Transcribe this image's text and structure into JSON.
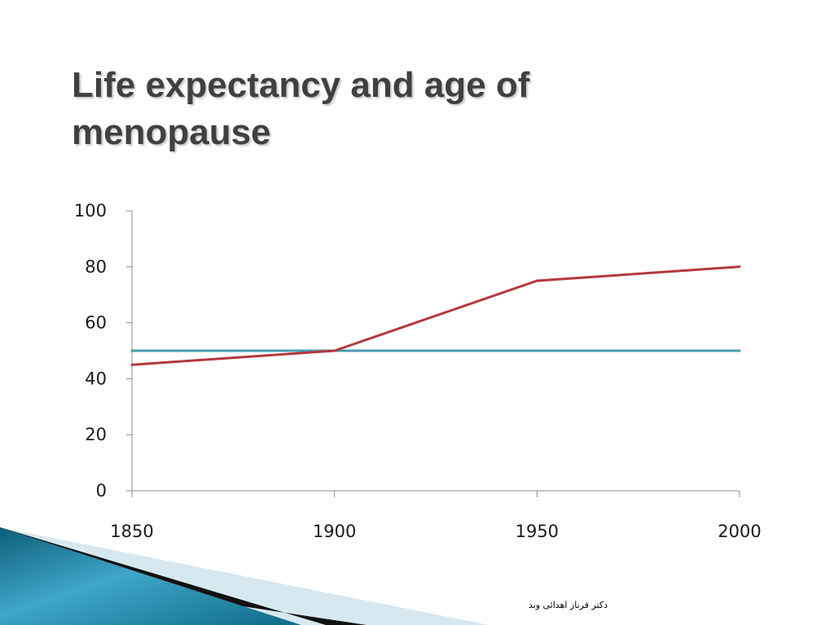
{
  "slide": {
    "title_line1": "Life expectancy and age of",
    "title_line2": "menopause",
    "footer": "دکتر فرناز اهدائی وند"
  },
  "colors": {
    "title": "#404040",
    "axis": "#8c8c8c",
    "life_expectancy_line": "#b5383c",
    "menopause_line": "#4a9cb3",
    "decor_dark": "#0e6d8a",
    "decor_light": "#d5e8f0"
  },
  "chart_data": {
    "type": "line",
    "x": [
      1850,
      1900,
      1950,
      2000
    ],
    "series": [
      {
        "values": [
          45,
          50,
          75,
          80
        ],
        "color": "#b5383c"
      },
      {
        "values": [
          50,
          50,
          50,
          50
        ],
        "color": "#4a9cb3"
      }
    ],
    "ylim": [
      0,
      100
    ],
    "yticks": [
      "0",
      "20",
      "40",
      "60",
      "80",
      "100"
    ],
    "xticks": [
      "1850",
      "1900",
      "1950",
      "2000"
    ],
    "grid": false
  }
}
